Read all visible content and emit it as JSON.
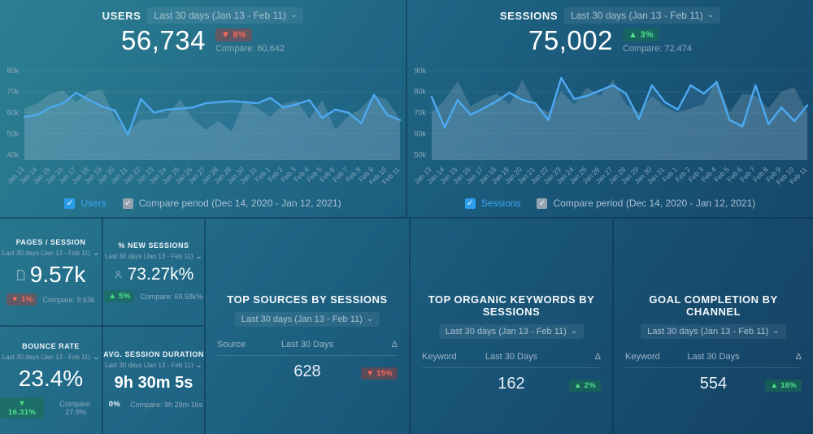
{
  "icons": {
    "chevron": "⌄",
    "check": "✓"
  },
  "colors": {
    "background_top_left": "#2c8092",
    "background_bottom_right": "#154164",
    "line_blue": "#4da9f2",
    "compare_fill": "rgba(199,214,224,0.20)",
    "positive_text": "#4ee08a",
    "negative_text": "#ff6a58",
    "checkbox_blue": "#2b9ee9",
    "muted_text": "#8fa9bc"
  },
  "charts": [
    {
      "title": "USERS",
      "date_range": "Last 30 days (Jan 13 - Feb 11)",
      "value": "56,734",
      "delta_label": "▼ 6%",
      "compare_label": "Compare: 60,642",
      "legend_series": "Users",
      "legend_compare": "Compare period (Dec 14, 2020 - Jan 12, 2021)"
    },
    {
      "title": "SESSIONS",
      "date_range": "Last 30 days (Jan 13 - Feb 11)",
      "value": "75,002",
      "delta_label": "▲ 3%",
      "compare_label": "Compare: 72,474",
      "legend_series": "Sessions",
      "legend_compare": "Compare period (Dec 14, 2020 - Jan 12, 2021)"
    }
  ],
  "chart_data": [
    {
      "type": "line",
      "title": "Users",
      "total": 56734,
      "compare_total": 60642,
      "ylim": [
        37.5,
        83
      ],
      "yticks": [
        40,
        50,
        60,
        70,
        80
      ],
      "ytick_suffix": "k",
      "grid": true,
      "categories": [
        "Jan 13",
        "Jan 14",
        "Jan 15",
        "Jan 16",
        "Jan 17",
        "Jan 18",
        "Jan 19",
        "Jan 20",
        "Jan 21",
        "Jan 22",
        "Jan 23",
        "Jan 24",
        "Jan 25",
        "Jan 26",
        "Jan 27",
        "Jan 28",
        "Jan 29",
        "Jan 30",
        "Jan 31",
        "Feb 1",
        "Feb 2",
        "Feb 3",
        "Feb 4",
        "Feb 5",
        "Feb 6",
        "Feb 7",
        "Feb 8",
        "Feb 9",
        "Feb 10",
        "Feb 11"
      ],
      "series": [
        {
          "name": "Users",
          "color": "#4da9f2",
          "fill": "rgba(141,196,242,0.10)",
          "values": [
            58,
            59,
            62.5,
            64.5,
            69.5,
            66,
            63,
            61,
            49.5,
            66.5,
            60,
            61.5,
            62,
            62.5,
            64.5,
            65,
            65.5,
            65,
            64.5,
            67,
            62.5,
            64,
            66,
            57.5,
            61.5,
            60,
            55,
            68.5,
            59,
            56.5
          ]
        },
        {
          "name": "Compare period (Dec 14, 2020 - Jan 12, 2021)",
          "color": "none",
          "fill": "rgba(199,214,224,0.20)",
          "values": [
            62,
            64.5,
            69,
            70.5,
            65,
            70,
            71,
            57,
            51,
            56.5,
            57,
            57.5,
            66.5,
            57,
            52,
            56,
            51,
            66,
            62,
            58,
            64,
            66,
            57,
            66,
            52,
            58,
            62,
            68.5,
            66,
            57
          ]
        }
      ]
    },
    {
      "type": "line",
      "title": "Sessions",
      "total": 75002,
      "compare_total": 72474,
      "ylim": [
        47.5,
        93
      ],
      "yticks": [
        50,
        60,
        70,
        80,
        90
      ],
      "ytick_suffix": "k",
      "grid": true,
      "categories": [
        "Jan 13",
        "Jan 14",
        "Jan 15",
        "Jan 16",
        "Jan 17",
        "Jan 18",
        "Jan 19",
        "Jan 20",
        "Jan 21",
        "Jan 22",
        "Jan 23",
        "Jan 24",
        "Jan 25",
        "Jan 26",
        "Jan 27",
        "Jan 28",
        "Jan 29",
        "Jan 30",
        "Jan 31",
        "Feb 1",
        "Feb 2",
        "Feb 3",
        "Feb 4",
        "Feb 5",
        "Feb 6",
        "Feb 7",
        "Feb 8",
        "Feb 9",
        "Feb 10",
        "Feb 11"
      ],
      "series": [
        {
          "name": "Sessions",
          "color": "#4da9f2",
          "fill": "rgba(141,196,242,0.10)",
          "values": [
            77.5,
            63,
            76,
            69,
            72,
            75.5,
            79.5,
            76,
            74.5,
            66.5,
            86.5,
            76.5,
            78,
            80.5,
            83,
            79,
            67,
            83,
            75,
            71.5,
            83,
            79,
            84.5,
            66.5,
            63.5,
            83,
            64.5,
            72.5,
            66,
            73.5
          ]
        },
        {
          "name": "Compare period (Dec 14, 2020 - Jan 12, 2021)",
          "color": "none",
          "fill": "rgba(199,214,224,0.20)",
          "values": [
            70,
            76,
            85,
            73,
            76.5,
            79,
            74,
            85.5,
            73.5,
            70,
            80,
            74,
            82,
            78,
            85.5,
            74,
            70,
            78,
            73,
            70,
            72,
            74,
            86,
            70,
            79,
            78,
            72,
            80,
            82,
            70
          ]
        }
      ]
    }
  ],
  "metrics": [
    {
      "title": "PAGES / SESSION",
      "date_range": "Last 30 days (Jan 13 - Feb 11)",
      "icon": "document-icon",
      "value": "9.57k",
      "delta_label": "▼ 1%",
      "compare_label": "Compare: 9.63k"
    },
    {
      "title": "% NEW SESSIONS",
      "date_range": "Last 30 days (Jan 13 - Feb 11)",
      "icon": "person-icon",
      "value": "73.27k%",
      "delta_label": "▲ 5%",
      "compare_label": "Compare: 69.58k%"
    },
    {
      "title": "BOUNCE RATE",
      "date_range": "Last 30 days (Jan 13 - Feb 11)",
      "icon": null,
      "value": "23.4%",
      "delta_label": "▼ 16.31%",
      "compare_label": "Compare: 27.9%"
    },
    {
      "title": "AVG. SESSION DURATION",
      "date_range": "Last 30 days (Jan 13 - Feb 11)",
      "icon": null,
      "value": "9h 30m 5s",
      "delta_label": "0%",
      "compare_label": "Compare: 9h 28m 16s"
    }
  ],
  "tables": [
    {
      "title": "TOP SOURCES BY SESSIONS",
      "date_range": "Last 30 days (Jan 13 - Feb 11)",
      "col1": "Source",
      "col2": "Last 30 Days",
      "col3": "Δ",
      "rows": [
        {
          "label": "",
          "value": "628",
          "delta_label": "▼ 15%"
        }
      ]
    },
    {
      "title": "TOP ORGANIC KEYWORDS BY SESSIONS",
      "date_range": "Last 30 days (Jan 13 - Feb 11)",
      "col1": "Keyword",
      "col2": "Last 30 Days",
      "col3": "Δ",
      "rows": [
        {
          "label": "",
          "value": "162",
          "delta_label": "▲ 2%"
        }
      ]
    },
    {
      "title": "GOAL COMPLETION BY CHANNEL",
      "date_range": "Last 30 days (Jan 13 - Feb 11)",
      "col1": "Keyword",
      "col2": "Last 30 Days",
      "col3": "Δ",
      "rows": [
        {
          "label": "",
          "value": "554",
          "delta_label": "▲ 18%"
        }
      ]
    }
  ]
}
